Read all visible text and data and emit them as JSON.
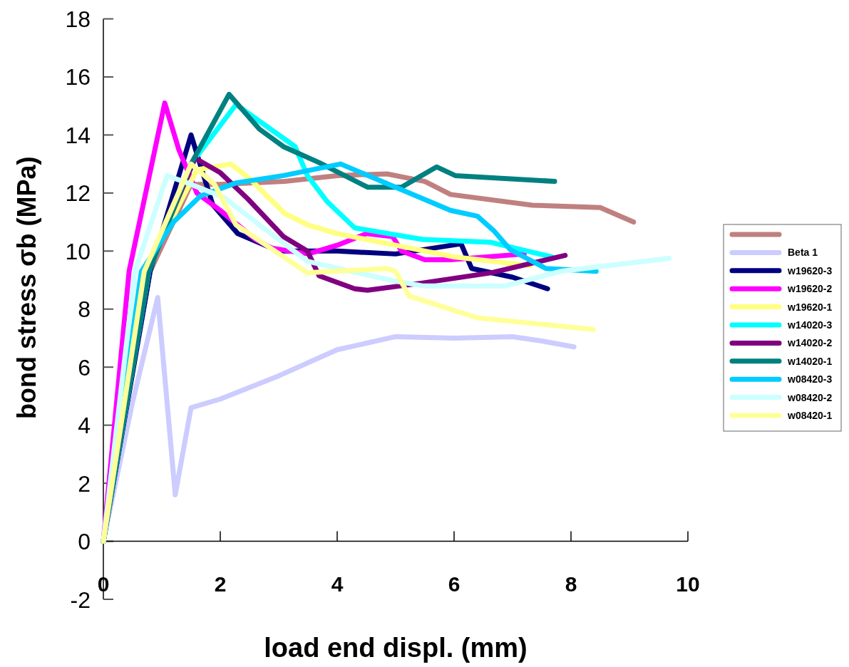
{
  "chart_data": {
    "type": "line",
    "xlabel": "load end displ. (mm)",
    "ylabel": "bond stress σb (MPa)",
    "xlim": [
      0,
      10
    ],
    "xticks": [
      0,
      2,
      4,
      6,
      8,
      10
    ],
    "ylim": [
      -2,
      18
    ],
    "yticks": [
      -2,
      0,
      2,
      4,
      6,
      8,
      10,
      12,
      14,
      16,
      18
    ],
    "grid": false,
    "legend": "right",
    "line_style": "solid",
    "series": [
      {
        "color": "#c08080",
        "x": [
          0,
          0.8,
          1.5,
          2,
          3.1,
          4,
          4.85,
          5.5,
          5.94,
          7.34,
          8.5,
          9.07
        ],
        "values": [
          0,
          9.3,
          12.3,
          12.3,
          12.4,
          12.6,
          12.66,
          12.4,
          11.95,
          11.58,
          11.5,
          11.0
        ]
      },
      {
        "name": "Beta 1",
        "color": "#ccccff",
        "x": [
          0,
          0.5,
          0.93,
          1.23,
          1.5,
          2,
          3,
          4,
          5,
          6,
          7,
          7.5,
          8.05
        ],
        "values": [
          0,
          4.8,
          8.4,
          1.6,
          4.6,
          4.9,
          5.7,
          6.6,
          7.05,
          7.0,
          7.05,
          6.9,
          6.7
        ]
      },
      {
        "name": "w19620-3",
        "color": "#000080",
        "x": [
          0,
          0.8,
          1.5,
          1.87,
          2.3,
          3,
          4,
          5,
          6.12,
          6.3,
          7,
          7.6
        ],
        "values": [
          0,
          9.3,
          14.0,
          11.6,
          10.6,
          10.0,
          10.0,
          9.9,
          10.25,
          9.4,
          9.1,
          8.7
        ]
      },
      {
        "name": "w19620-2",
        "color": "#ff00ff",
        "x": [
          0,
          0.44,
          1.05,
          1.29,
          1.6,
          2,
          2.6,
          2.88,
          3.5,
          4,
          4.5,
          4.95,
          5.1,
          5.5,
          5.94,
          7.2
        ],
        "values": [
          0,
          9.3,
          15.1,
          13.5,
          12.0,
          11.4,
          10.4,
          10.1,
          9.9,
          10.2,
          10.6,
          10.5,
          10.0,
          9.7,
          9.7,
          9.9
        ]
      },
      {
        "name": "w19620-1",
        "color": "#ffff80",
        "x": [
          0,
          0.72,
          1.6,
          2.18,
          2.5,
          3.1,
          3.5,
          4,
          5,
          6,
          7.3
        ],
        "values": [
          0,
          9.3,
          12.8,
          13.0,
          12.5,
          11.3,
          10.9,
          10.6,
          10.2,
          9.8,
          9.5
        ]
      },
      {
        "name": "w14020-3",
        "color": "#00ffff",
        "x": [
          0,
          0.78,
          1.5,
          2.27,
          3.28,
          3.49,
          3.83,
          4.3,
          5.46,
          6.63,
          7.67
        ],
        "values": [
          0,
          9.3,
          13.0,
          15.05,
          13.6,
          12.6,
          11.7,
          10.8,
          10.4,
          10.3,
          9.8
        ]
      },
      {
        "name": "w14020-2",
        "color": "#800080",
        "x": [
          0,
          0.75,
          1.57,
          2,
          2.47,
          3.08,
          3.49,
          3.69,
          4.3,
          4.52,
          5.46,
          6.63,
          7.9
        ],
        "values": [
          0,
          9.3,
          13.2,
          12.7,
          11.8,
          10.5,
          10.0,
          9.15,
          8.7,
          8.65,
          8.9,
          9.25,
          9.85
        ]
      },
      {
        "name": "w14020-1",
        "color": "#008080",
        "x": [
          0,
          0.78,
          1.5,
          2.15,
          2.67,
          3.08,
          3.69,
          4.52,
          5.1,
          5.7,
          6.02,
          7.72
        ],
        "values": [
          0,
          9.3,
          13.0,
          15.4,
          14.2,
          13.6,
          13.05,
          12.2,
          12.2,
          12.9,
          12.6,
          12.4
        ]
      },
      {
        "name": "w08420-3",
        "color": "#00ccff",
        "x": [
          0,
          0.65,
          1.2,
          1.66,
          2.27,
          3.08,
          4.06,
          5.0,
          5.94,
          6.4,
          6.68,
          6.96,
          7.57,
          8.43
        ],
        "values": [
          0,
          9.3,
          11.0,
          11.9,
          12.35,
          12.6,
          13.0,
          12.2,
          11.4,
          11.2,
          10.7,
          10.05,
          9.4,
          9.3
        ]
      },
      {
        "name": "w08420-2",
        "color": "#ccffff",
        "x": [
          0,
          0.54,
          1.09,
          1.5,
          2.06,
          2.67,
          3.49,
          4.9,
          5.46,
          6.88,
          7.82,
          9.68
        ],
        "values": [
          0,
          9.3,
          12.6,
          12.3,
          11.85,
          10.9,
          9.65,
          9.0,
          8.8,
          8.8,
          9.3,
          9.75
        ]
      },
      {
        "name": "w08420-1",
        "color": "#ffff99",
        "x": [
          0,
          0.7,
          1.5,
          1.9,
          2.27,
          3.49,
          4.85,
          5.0,
          5.23,
          6.4,
          8.38
        ],
        "values": [
          0,
          9.3,
          13.0,
          12.3,
          10.9,
          9.25,
          9.4,
          9.3,
          8.45,
          7.7,
          7.3
        ]
      }
    ]
  }
}
